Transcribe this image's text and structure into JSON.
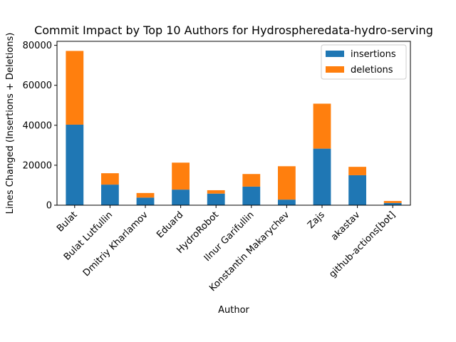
{
  "chart_data": {
    "type": "bar",
    "stacked": true,
    "title": "Commit Impact by Top 10 Authors for Hydrospheredata-hydro-serving",
    "xlabel": "Author",
    "ylabel": "Lines Changed (Insertions + Deletions)",
    "ylim": [
      0,
      82000
    ],
    "yticks": [
      0,
      20000,
      40000,
      60000,
      80000
    ],
    "ytick_labels": [
      "0",
      "20000",
      "40000",
      "60000",
      "80000"
    ],
    "grid": false,
    "legend_position": "top-right",
    "categories": [
      "Bulat",
      "Bulat Lutfullin",
      "Dmitriy Kharlamov",
      "Eduard",
      "HydroRobot",
      "Ilnur Garifullin",
      "Konstantin Makarychev",
      "Zajs",
      "akastav",
      "github-actions[bot]"
    ],
    "series": [
      {
        "name": "insertions",
        "color": "#1f77b4",
        "values": [
          40300,
          10300,
          3800,
          7800,
          5800,
          9300,
          2800,
          28300,
          15000,
          1100
        ]
      },
      {
        "name": "deletions",
        "color": "#ff7f0e",
        "values": [
          36900,
          5700,
          2300,
          13500,
          1700,
          6300,
          16700,
          22500,
          4200,
          1000
        ]
      }
    ]
  }
}
